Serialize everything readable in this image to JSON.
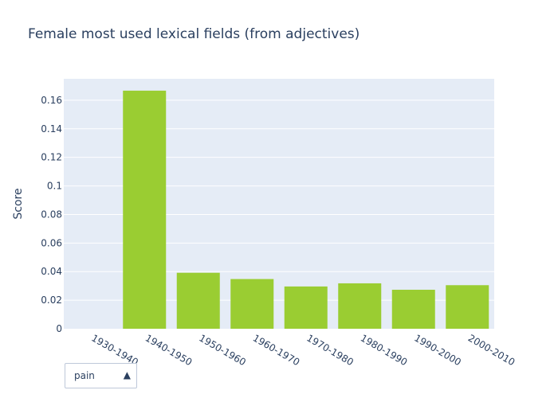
{
  "chart_data": {
    "type": "bar",
    "title": "Female most used lexical fields (from adjectives)",
    "xlabel": "",
    "ylabel": "Score",
    "categories": [
      "1930-1940",
      "1940-1950",
      "1950-1960",
      "1960-1970",
      "1970-1980",
      "1980-1990",
      "1990-2000",
      "2000-2010"
    ],
    "values": [
      0,
      0.1667,
      0.0392,
      0.0348,
      0.0296,
      0.0318,
      0.0273,
      0.0305
    ],
    "ylim": [
      0,
      0.175
    ],
    "yticks": [
      0,
      0.02,
      0.04,
      0.06,
      0.08,
      0.1,
      0.12,
      0.14,
      0.16
    ],
    "ytick_labels": [
      "0",
      "0.02",
      "0.04",
      "0.06",
      "0.08",
      "0.1",
      "0.12",
      "0.14",
      "0.16"
    ],
    "grid": true,
    "bar_color": "#9acd32",
    "plot_background": "#e5ecf6"
  },
  "dropdown": {
    "selected": "pain",
    "arrow_icon": "triangle-up-icon"
  }
}
